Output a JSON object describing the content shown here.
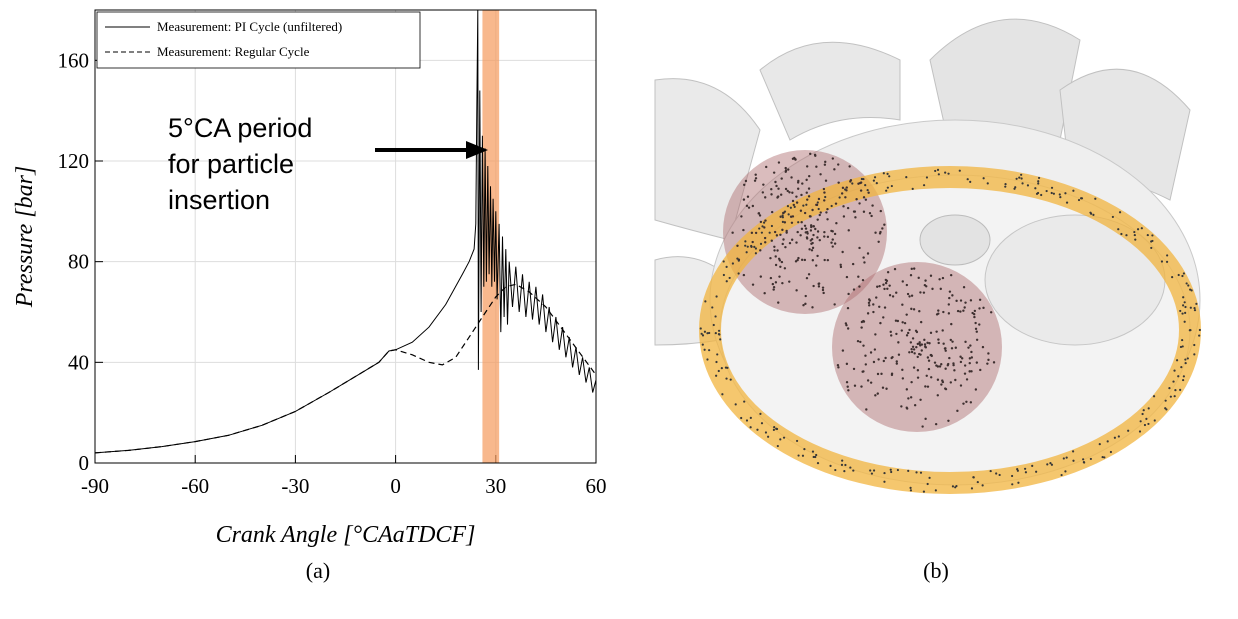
{
  "chart_data": {
    "type": "line",
    "xlabel": "Crank Angle [°CAaTDCF]",
    "ylabel": "Pressure [bar]",
    "xlim": [
      -90,
      60
    ],
    "xticks": [
      -90,
      -60,
      -30,
      0,
      30,
      60
    ],
    "ylim": [
      0,
      180
    ],
    "yticks": [
      0,
      40,
      80,
      120,
      160
    ],
    "grid": true,
    "legend": "upper left",
    "highlight": [
      26,
      31
    ],
    "highlight_color": "#f59a5c",
    "annotation": [
      "5°CA period",
      "for particle",
      "insertion"
    ],
    "series": [
      {
        "name": "Measurement: PI Cycle (unfiltered)",
        "color": "#000000",
        "dash": "solid",
        "x": [
          -90,
          -80,
          -70,
          -60,
          -50,
          -40,
          -30,
          -20,
          -10,
          -5,
          -2,
          0,
          5,
          10,
          15,
          20,
          22,
          23.5,
          24,
          24.3,
          24.6,
          24.8,
          25.2,
          25.6,
          26,
          26.4,
          26.8,
          27.2,
          27.6,
          28,
          28.4,
          28.8,
          29.2,
          29.6,
          30,
          30.4,
          31,
          31.5,
          32,
          32.5,
          33,
          33.5,
          34,
          35,
          36,
          37,
          38,
          39,
          40,
          41,
          42,
          43,
          44,
          45,
          46,
          47,
          48,
          49,
          50,
          51,
          52,
          53,
          54,
          55,
          56,
          57,
          58,
          59,
          60
        ],
        "values": [
          4,
          5,
          6.5,
          8.5,
          11,
          15,
          20.5,
          28,
          36,
          40,
          44.5,
          45,
          48,
          54,
          63,
          75,
          80,
          85,
          95,
          140,
          180,
          37,
          148,
          60,
          130,
          70,
          125,
          72,
          118,
          75,
          110,
          70,
          105,
          72,
          100,
          65,
          95,
          52,
          90,
          58,
          85,
          55,
          80,
          62,
          78,
          60,
          75,
          58,
          72,
          57,
          70,
          55,
          67,
          52,
          62,
          48,
          58,
          45,
          54,
          42,
          50,
          38,
          46,
          35,
          42,
          32,
          38,
          28,
          33
        ]
      },
      {
        "name": "Measurement: Regular Cycle",
        "color": "#000000",
        "dash": "dashed",
        "x": [
          -90,
          -80,
          -70,
          -60,
          -50,
          -40,
          -30,
          -20,
          -10,
          -5,
          -2,
          0,
          5,
          10,
          14,
          18,
          22,
          26,
          30,
          33,
          36,
          40,
          45,
          50,
          55,
          60
        ],
        "values": [
          4,
          5,
          6.5,
          8.5,
          11,
          15,
          20.5,
          28,
          36,
          40,
          44.5,
          45,
          43,
          40,
          39,
          42,
          50,
          58,
          66,
          70,
          71,
          68,
          62,
          53,
          44,
          35
        ]
      }
    ]
  },
  "captions": [
    "(a)",
    "(b)"
  ]
}
